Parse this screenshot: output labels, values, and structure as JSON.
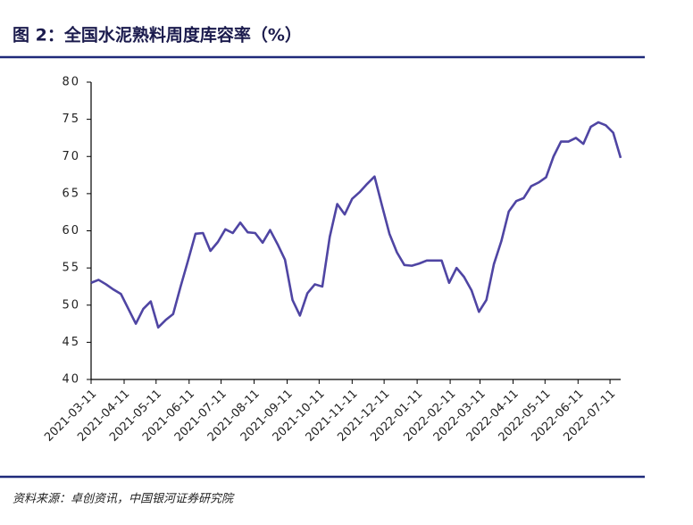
{
  "chart_data": {
    "type": "line",
    "title": "图 2：全国水泥熟料周度库容率（%）",
    "source": "资料来源：卓创资讯，中国银河证券研究院",
    "x": [
      "2021-03-11",
      "2021-03-18",
      "2021-03-25",
      "2021-04-01",
      "2021-04-08",
      "2021-04-15",
      "2021-04-22",
      "2021-04-29",
      "2021-05-06",
      "2021-05-13",
      "2021-05-20",
      "2021-05-27",
      "2021-06-03",
      "2021-06-10",
      "2021-06-17",
      "2021-06-24",
      "2021-07-01",
      "2021-07-08",
      "2021-07-15",
      "2021-07-22",
      "2021-07-29",
      "2021-08-05",
      "2021-08-12",
      "2021-08-19",
      "2021-08-26",
      "2021-09-02",
      "2021-09-09",
      "2021-09-16",
      "2021-09-23",
      "2021-09-30",
      "2021-10-07",
      "2021-10-14",
      "2021-10-21",
      "2021-10-28",
      "2021-11-04",
      "2021-11-11",
      "2021-11-18",
      "2021-11-25",
      "2021-12-02",
      "2021-12-09",
      "2021-12-16",
      "2021-12-23",
      "2021-12-30",
      "2022-01-06",
      "2022-01-13",
      "2022-01-20",
      "2022-01-27",
      "2022-02-03",
      "2022-02-10",
      "2022-02-17",
      "2022-02-24",
      "2022-03-03",
      "2022-03-10",
      "2022-03-17",
      "2022-03-24",
      "2022-03-31",
      "2022-04-07",
      "2022-04-14",
      "2022-04-21",
      "2022-04-28",
      "2022-05-05",
      "2022-05-12",
      "2022-05-19",
      "2022-05-26",
      "2022-06-02",
      "2022-06-09",
      "2022-06-16",
      "2022-06-23",
      "2022-06-30",
      "2022-07-07",
      "2022-07-14",
      "2022-07-21"
    ],
    "values": [
      53.0,
      53.4,
      52.8,
      52.1,
      51.5,
      49.5,
      47.5,
      49.5,
      50.5,
      47.0,
      48.0,
      48.8,
      52.5,
      56.0,
      59.6,
      59.7,
      57.3,
      58.5,
      60.2,
      59.7,
      61.1,
      59.8,
      59.7,
      58.4,
      60.1,
      58.2,
      56.1,
      50.7,
      48.6,
      51.6,
      52.8,
      52.5,
      59.2,
      63.6,
      62.2,
      64.3,
      65.2,
      66.3,
      67.3,
      63.4,
      59.6,
      57.1,
      55.4,
      55.3,
      55.6,
      56.0,
      56.0,
      56.0,
      53.0,
      55.0,
      53.8,
      52.0,
      49.1,
      50.7,
      55.5,
      58.6,
      62.6,
      64.0,
      64.4,
      66.0,
      66.5,
      67.2,
      70.0,
      72.0,
      72.0,
      72.5,
      71.7,
      74.0,
      74.6,
      74.2,
      73.2,
      69.8
    ],
    "color": "#4f45a3",
    "xlim": [
      "2021-03-11",
      "2022-07-21"
    ],
    "xticks": [
      "2021-03-11",
      "2021-04-11",
      "2021-05-11",
      "2021-06-11",
      "2021-07-11",
      "2021-08-11",
      "2021-09-11",
      "2021-10-11",
      "2021-11-11",
      "2021-12-11",
      "2022-01-11",
      "2022-02-11",
      "2022-03-11",
      "2022-04-11",
      "2022-05-11",
      "2022-06-11",
      "2022-07-11"
    ],
    "ylim": [
      40,
      80
    ],
    "yticks": [
      40,
      45,
      50,
      55,
      60,
      65,
      70,
      75,
      80
    ]
  }
}
